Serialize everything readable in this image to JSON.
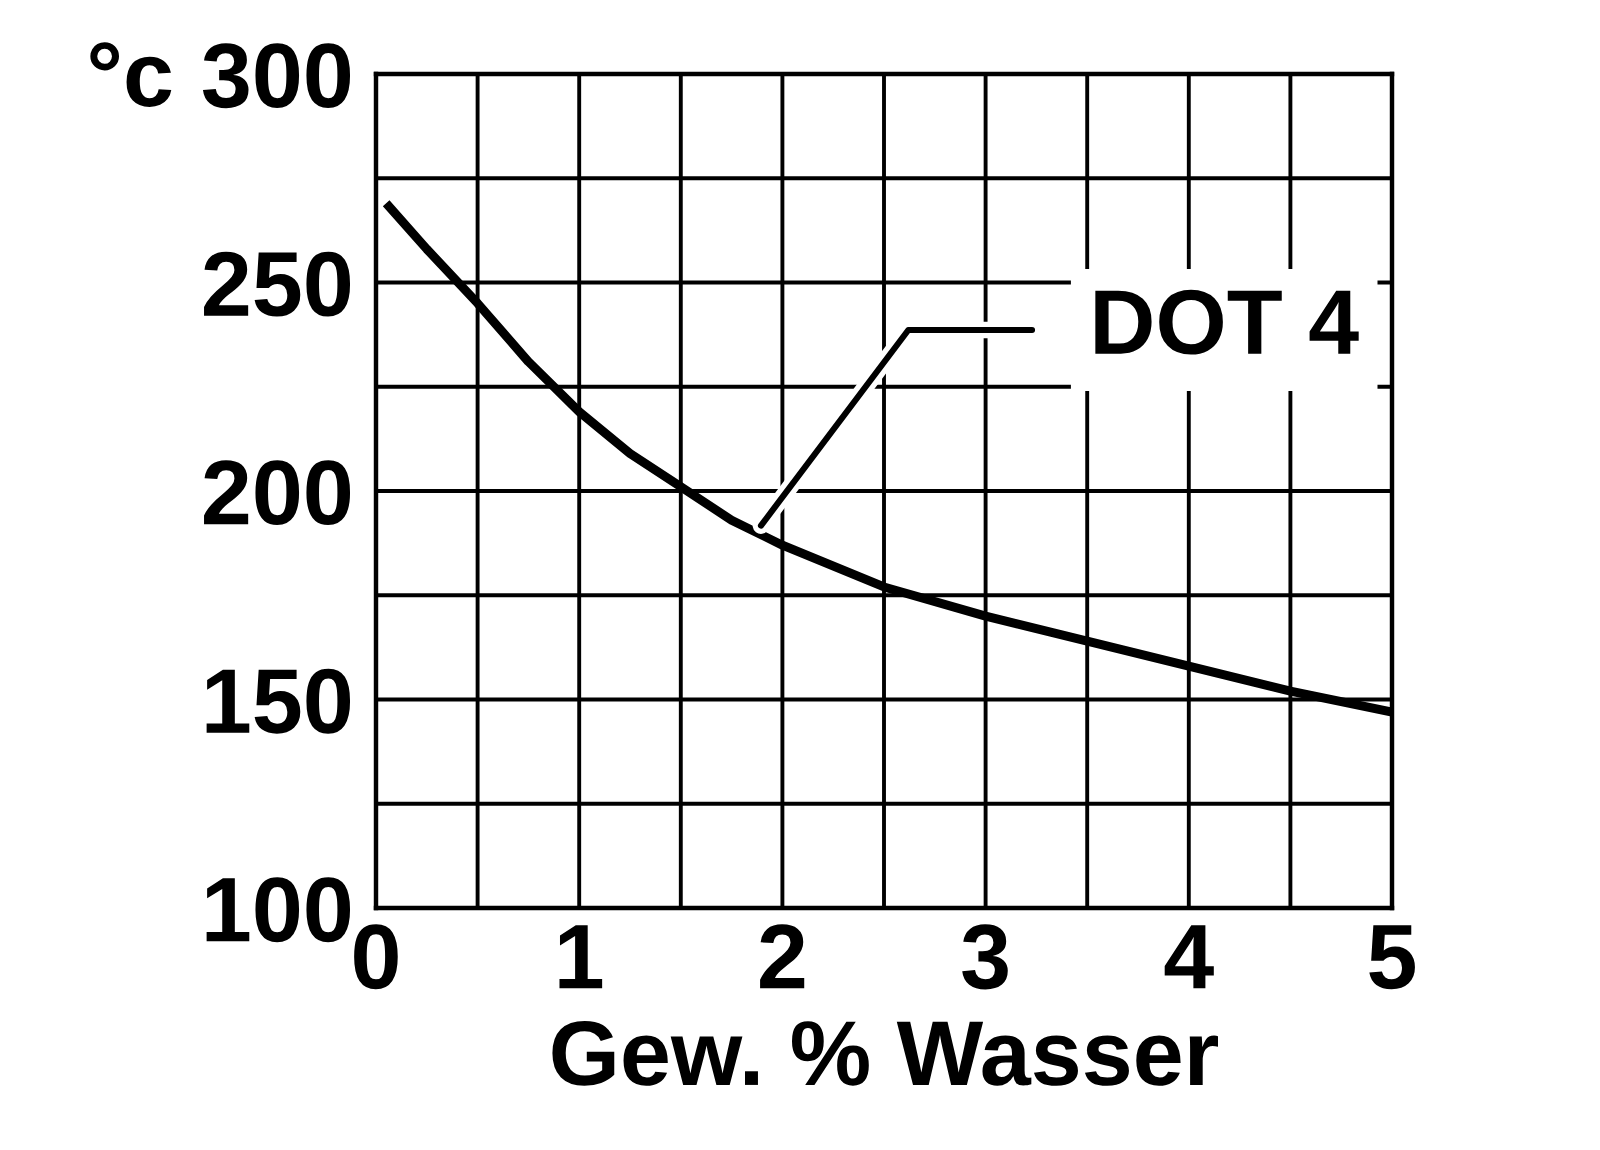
{
  "chart_data": {
    "type": "line",
    "xlabel": "Gew. % Wasser",
    "ylabel": "°c",
    "xlim": [
      0,
      5
    ],
    "ylim": [
      100,
      300
    ],
    "xticks": [
      0,
      {
        "value": 0.5,
        "label": null
      },
      1,
      {
        "value": 1.5,
        "label": null
      },
      2,
      {
        "value": 2.5,
        "label": null
      },
      3,
      {
        "value": 3.5,
        "label": null
      },
      4,
      {
        "value": 4.5,
        "label": null
      },
      5
    ],
    "yticks": [
      100,
      {
        "value": 125,
        "label": null
      },
      150,
      {
        "value": 175,
        "label": null
      },
      200,
      {
        "value": 225,
        "label": null
      },
      250,
      {
        "value": 275,
        "label": null
      },
      300
    ],
    "grid": true,
    "legend": false,
    "marker": "none",
    "line_style": "solid",
    "series": [
      {
        "name": "DOT 4",
        "color": "#000000",
        "x": [
          0.05,
          0.25,
          0.5,
          0.75,
          1,
          1.25,
          1.5,
          1.75,
          2,
          2.5,
          3,
          3.5,
          4,
          4.5,
          5
        ],
        "values": [
          269,
          258,
          245,
          231,
          219,
          209,
          201,
          193,
          187,
          177,
          170,
          164,
          158,
          152,
          147
        ]
      }
    ]
  }
}
